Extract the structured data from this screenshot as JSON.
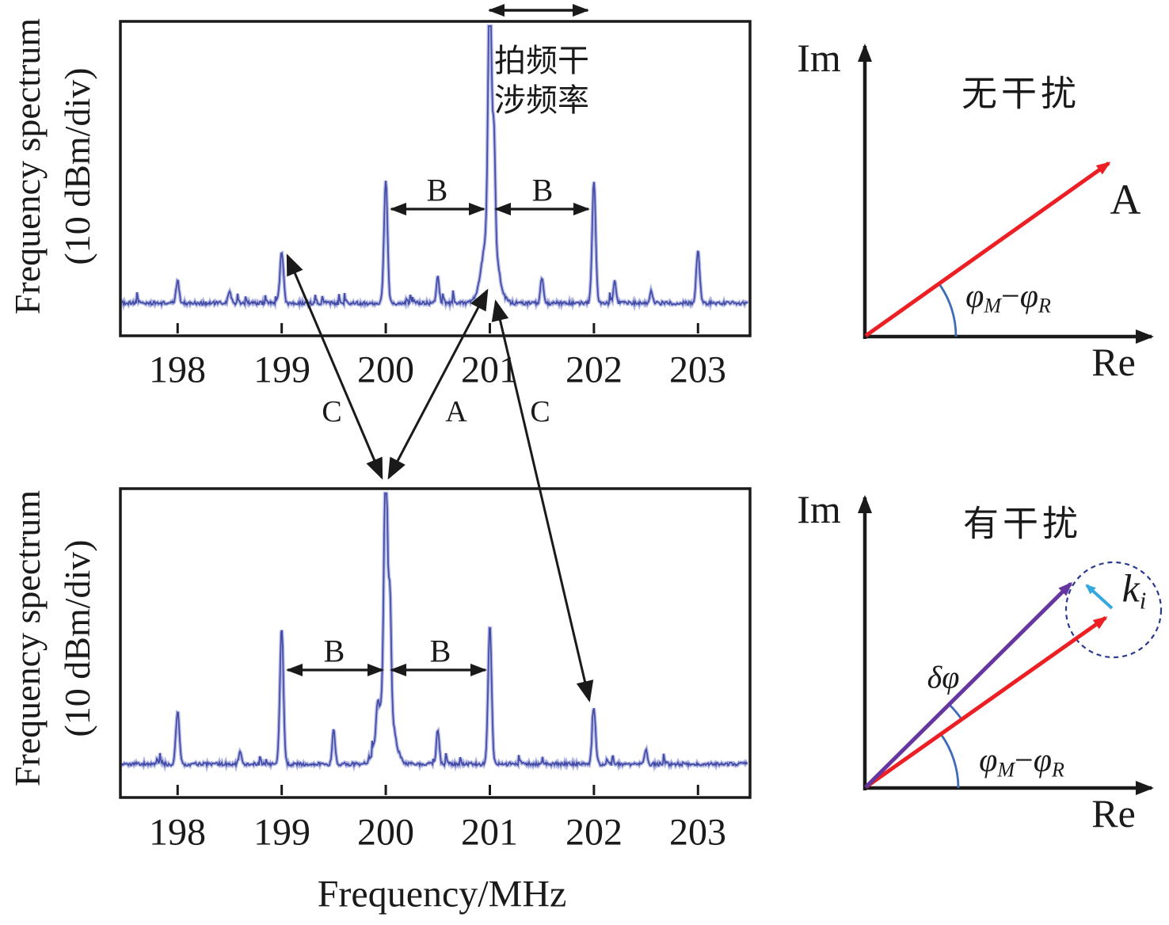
{
  "colors": {
    "spectrum_line": "#434ba6",
    "spectrum_halo": "#aab0e0",
    "annotation_black": "#1a1a1a",
    "vector_red": "#ec2024",
    "vector_purple": "#6535a0",
    "vector_cyan": "#35a8e0",
    "angle_arc_blue": "#3e6cb8",
    "dashed_circle_blue": "#2b3990"
  },
  "spectra": {
    "top": {
      "ylabel1": "Frequency spectrum",
      "ylabel2": "(10 dBm/div)",
      "b_left": "B",
      "b_right": "B"
    },
    "bottom": {
      "ylabel1": "Frequency spectrum",
      "ylabel2": "(10 dBm/div)",
      "b_left": "B",
      "b_right": "B"
    },
    "x_title": "Frequency/MHz",
    "beat_line1": "拍频干",
    "beat_line2": "涉频率",
    "links": {
      "c_left": "C",
      "a": "A",
      "c_right": "C"
    }
  },
  "phasors": {
    "top": {
      "im": "Im",
      "re": "Re",
      "title": "无干扰",
      "vector_label": "A",
      "angle": {
        "p1": "φ",
        "s1": "M",
        "minus": "−",
        "p2": "φ",
        "s2": "R"
      }
    },
    "bottom": {
      "im": "Im",
      "re": "Re",
      "title": "有干扰",
      "k_base": "k",
      "k_sub": "i",
      "delta": "δφ",
      "angle": {
        "p1": "φ",
        "s1": "M",
        "minus": "−",
        "p2": "φ",
        "s2": "R"
      }
    }
  },
  "chart_data": [
    {
      "type": "line",
      "name": "frequency_spectrum_without_interference",
      "xlabel": "Frequency/MHz",
      "ylabel": "Frequency spectrum (10 dBm/div)",
      "xlim_mhz": [
        197.45,
        203.5
      ],
      "x_ticks": [
        198,
        199,
        200,
        201,
        202,
        203
      ],
      "x_tick_labels": [
        "198",
        "199",
        "200",
        "201",
        "202",
        "203"
      ],
      "y_scale_note": "10 dBm per division, no numeric y-axis ticks shown",
      "peak_annotation": "拍频干涉频率 (beat interference frequency) at 201 MHz",
      "bandwidth_B_spans_mhz": [
        [
          200,
          201
        ],
        [
          201,
          202
        ]
      ],
      "peaks": [
        {
          "f": 198.0,
          "a": 0.08,
          "w": 2.0
        },
        {
          "f": 198.5,
          "a": 0.045,
          "w": 1.8
        },
        {
          "f": 199.0,
          "a": 0.19,
          "w": 2.2
        },
        {
          "f": 200.0,
          "a": 0.45,
          "w": 2.2
        },
        {
          "f": 200.5,
          "a": 0.095,
          "w": 1.8
        },
        {
          "f": 201.0,
          "a": 0.3,
          "w": 8.5
        },
        {
          "f": 201.0,
          "a": 1.0,
          "w": 2.0
        },
        {
          "f": 201.04,
          "a": 0.39,
          "w": 1.6
        },
        {
          "f": 201.5,
          "a": 0.095,
          "w": 1.8
        },
        {
          "f": 202.0,
          "a": 0.45,
          "w": 2.2
        },
        {
          "f": 202.2,
          "a": 0.08,
          "w": 1.6
        },
        {
          "f": 202.55,
          "a": 0.05,
          "w": 1.6
        },
        {
          "f": 203.0,
          "a": 0.19,
          "w": 2.2
        }
      ]
    },
    {
      "type": "line",
      "name": "frequency_spectrum_with_interference",
      "xlabel": "Frequency/MHz",
      "ylabel": "Frequency spectrum (10 dBm/div)",
      "xlim_mhz": [
        197.45,
        203.5
      ],
      "x_ticks": [
        198,
        199,
        200,
        201,
        202,
        203
      ],
      "x_tick_labels": [
        "198",
        "199",
        "200",
        "201",
        "202",
        "203"
      ],
      "y_scale_note": "10 dBm per division, no numeric y-axis ticks shown",
      "bandwidth_B_spans_mhz": [
        [
          199,
          200
        ],
        [
          200,
          201
        ]
      ],
      "peaks": [
        {
          "f": 198.0,
          "a": 0.2,
          "w": 2.2
        },
        {
          "f": 198.6,
          "a": 0.05,
          "w": 1.6
        },
        {
          "f": 199.0,
          "a": 0.52,
          "w": 2.2
        },
        {
          "f": 199.5,
          "a": 0.13,
          "w": 1.8
        },
        {
          "f": 199.92,
          "a": 0.1,
          "w": 1.6
        },
        {
          "f": 200.0,
          "a": 0.3,
          "w": 8.5
        },
        {
          "f": 200.0,
          "a": 1.0,
          "w": 2.0
        },
        {
          "f": 200.04,
          "a": 0.41,
          "w": 1.6
        },
        {
          "f": 200.5,
          "a": 0.13,
          "w": 1.8
        },
        {
          "f": 201.0,
          "a": 0.53,
          "w": 2.2
        },
        {
          "f": 202.0,
          "a": 0.2,
          "w": 2.2
        },
        {
          "f": 202.5,
          "a": 0.06,
          "w": 1.6
        }
      ]
    },
    {
      "type": "diagram",
      "name": "phasor_no_interference",
      "title": "无干扰",
      "axes": [
        "Re",
        "Im"
      ],
      "vectors": [
        {
          "label": "A",
          "color": "#ec2024",
          "angle_deg": 35.5
        }
      ],
      "angle_label": "φM−φR"
    },
    {
      "type": "diagram",
      "name": "phasor_with_interference",
      "title": "有干扰",
      "axes": [
        "Re",
        "Im"
      ],
      "vectors": [
        {
          "label": "",
          "color": "#ec2024",
          "angle_deg": 35.3
        },
        {
          "label": "",
          "color": "#6535a0",
          "angle_deg": 44.7
        },
        {
          "label": "ki",
          "color": "#35a8e0",
          "note": "interference vector on dashed circle around red vector tip"
        }
      ],
      "angle_labels": [
        "δφ",
        "φM−φR"
      ]
    }
  ]
}
